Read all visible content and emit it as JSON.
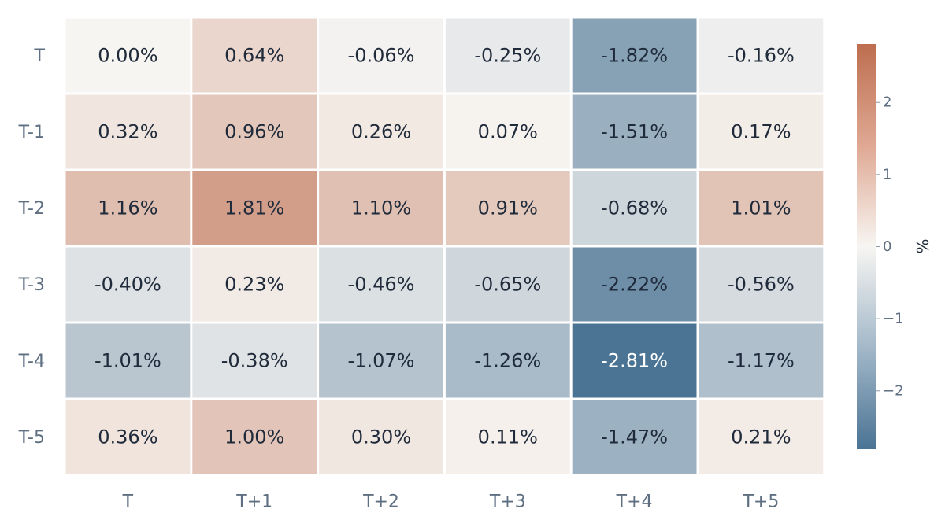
{
  "chart_data": {
    "type": "heatmap",
    "rows": [
      "T",
      "T-1",
      "T-2",
      "T-3",
      "T-4",
      "T-5"
    ],
    "columns": [
      "T",
      "T+1",
      "T+2",
      "T+3",
      "T+4",
      "T+5"
    ],
    "values": [
      [
        0.0,
        0.64,
        -0.06,
        -0.25,
        -1.82,
        -0.16
      ],
      [
        0.32,
        0.96,
        0.26,
        0.07,
        -1.51,
        0.17
      ],
      [
        1.16,
        1.81,
        1.1,
        0.91,
        -0.68,
        1.01
      ],
      [
        -0.4,
        0.23,
        -0.46,
        -0.65,
        -2.22,
        -0.56
      ],
      [
        -1.01,
        -0.38,
        -1.07,
        -1.26,
        -2.81,
        -1.17
      ],
      [
        0.36,
        1.0,
        0.3,
        0.11,
        -1.47,
        0.21
      ]
    ],
    "labels": [
      [
        "0.00%",
        "0.64%",
        "-0.06%",
        "-0.25%",
        "-1.82%",
        "-0.16%"
      ],
      [
        "0.32%",
        "0.96%",
        "0.26%",
        "0.07%",
        "-1.51%",
        "0.17%"
      ],
      [
        "1.16%",
        "1.81%",
        "1.10%",
        "0.91%",
        "-0.68%",
        "1.01%"
      ],
      [
        "-0.40%",
        "0.23%",
        "-0.46%",
        "-0.65%",
        "-2.22%",
        "-0.56%"
      ],
      [
        "-1.01%",
        "-0.38%",
        "-1.07%",
        "-1.26%",
        "-2.81%",
        "-1.17%"
      ],
      [
        "0.36%",
        "1.00%",
        "0.30%",
        "0.11%",
        "-1.47%",
        "0.21%"
      ]
    ],
    "colorbar": {
      "title": "%",
      "range": [
        -2.81,
        2.81
      ],
      "ticks": [
        2,
        1,
        0,
        -1,
        -2
      ],
      "tick_labels": [
        "2",
        "1",
        "0",
        "−1",
        "−2"
      ],
      "low_color": "#4a7394",
      "mid_color": "#f7f5f2",
      "high_color": "#bd6e4f"
    },
    "colors": {
      "text_dark": "#1f2a3a",
      "text_light": "#ffffff",
      "tick_text": "#5f6f82"
    }
  }
}
